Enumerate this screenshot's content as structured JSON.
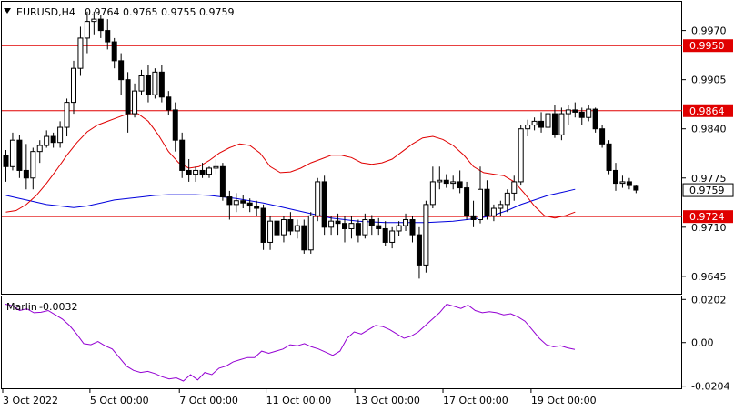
{
  "window": {
    "symbol_timeframe": "EURUSD,H4",
    "ohlc": "0.9764 0.9765 0.9755 0.9759",
    "dropdown_icon": "triangle-down-icon"
  },
  "chart_data": {
    "type": "candlestick",
    "symbol": "EURUSD",
    "timeframe": "H4",
    "ylim": [
      0.9622,
      1.0008
    ],
    "price_ticks": [
      "0.9970",
      "0.9905",
      "0.9840",
      "0.9775",
      "0.9710",
      "0.9645"
    ],
    "date_labels": [
      "3 Oct 2022",
      "5 Oct 00:00",
      "7 Oct 00:00",
      "11 Oct 00:00",
      "13 Oct 00:00",
      "17 Oct 00:00",
      "19 Oct 00:00"
    ],
    "levels": [
      {
        "label": "0.9950",
        "value": 0.995,
        "color": "#e00000"
      },
      {
        "label": "0.9864",
        "value": 0.9864,
        "color": "#e00000"
      },
      {
        "label": "0.9724",
        "value": 0.9724,
        "color": "#e00000"
      }
    ],
    "current_price": {
      "label": "0.9759",
      "value": 0.9759
    },
    "colors": {
      "bull": "#ffffff",
      "bear": "#000000",
      "fast_ma": "#e00000",
      "slow_ma": "#0000dd",
      "level": "#e00000",
      "oscillator": "#9400d3"
    },
    "candles": [
      [
        0.9805,
        0.9812,
        0.977,
        0.979
      ],
      [
        0.979,
        0.9835,
        0.9785,
        0.9825
      ],
      [
        0.9825,
        0.9832,
        0.9775,
        0.9785
      ],
      [
        0.9785,
        0.982,
        0.976,
        0.9775
      ],
      [
        0.9775,
        0.9815,
        0.976,
        0.981
      ],
      [
        0.981,
        0.9825,
        0.9795,
        0.9818
      ],
      [
        0.9818,
        0.9838,
        0.9815,
        0.983
      ],
      [
        0.983,
        0.9835,
        0.9815,
        0.9822
      ],
      [
        0.9822,
        0.985,
        0.9815,
        0.9842
      ],
      [
        0.9842,
        0.988,
        0.983,
        0.9875
      ],
      [
        0.9875,
        0.993,
        0.986,
        0.992
      ],
      [
        0.992,
        0.9975,
        0.991,
        0.996
      ],
      [
        0.996,
        0.9995,
        0.994,
        0.9982
      ],
      [
        0.9982,
        0.9995,
        0.9965,
        0.9985
      ],
      [
        0.9985,
        0.999,
        0.996,
        0.997
      ],
      [
        0.997,
        0.9985,
        0.9945,
        0.9955
      ],
      [
        0.9955,
        0.996,
        0.992,
        0.993
      ],
      [
        0.993,
        0.994,
        0.9885,
        0.9905
      ],
      [
        0.9905,
        0.9915,
        0.9835,
        0.986
      ],
      [
        0.986,
        0.99,
        0.9855,
        0.989
      ],
      [
        0.989,
        0.9918,
        0.9885,
        0.991
      ],
      [
        0.991,
        0.9925,
        0.9875,
        0.9885
      ],
      [
        0.9885,
        0.992,
        0.988,
        0.9915
      ],
      [
        0.9915,
        0.9925,
        0.9875,
        0.9882
      ],
      [
        0.9882,
        0.989,
        0.9858,
        0.9865
      ],
      [
        0.9865,
        0.9875,
        0.981,
        0.9825
      ],
      [
        0.9825,
        0.9835,
        0.9775,
        0.9785
      ],
      [
        0.9785,
        0.98,
        0.977,
        0.978
      ],
      [
        0.978,
        0.979,
        0.977,
        0.9785
      ],
      [
        0.9785,
        0.9795,
        0.9775,
        0.978
      ],
      [
        0.978,
        0.979,
        0.9775,
        0.9788
      ],
      [
        0.9788,
        0.98,
        0.978,
        0.979
      ],
      [
        0.979,
        0.9795,
        0.9745,
        0.975
      ],
      [
        0.975,
        0.9758,
        0.972,
        0.974
      ],
      [
        0.974,
        0.9755,
        0.973,
        0.9745
      ],
      [
        0.9745,
        0.9752,
        0.9735,
        0.9742
      ],
      [
        0.9742,
        0.9748,
        0.973,
        0.9738
      ],
      [
        0.9738,
        0.9745,
        0.9725,
        0.9735
      ],
      [
        0.9735,
        0.974,
        0.968,
        0.969
      ],
      [
        0.969,
        0.9725,
        0.968,
        0.9718
      ],
      [
        0.9718,
        0.973,
        0.9695,
        0.97
      ],
      [
        0.97,
        0.9725,
        0.969,
        0.972
      ],
      [
        0.972,
        0.973,
        0.97,
        0.9705
      ],
      [
        0.9705,
        0.972,
        0.9695,
        0.9712
      ],
      [
        0.9712,
        0.972,
        0.9675,
        0.968
      ],
      [
        0.968,
        0.973,
        0.9675,
        0.9725
      ],
      [
        0.9725,
        0.9775,
        0.9718,
        0.977
      ],
      [
        0.977,
        0.9778,
        0.97,
        0.971
      ],
      [
        0.971,
        0.9725,
        0.97,
        0.9718
      ],
      [
        0.9718,
        0.9728,
        0.97,
        0.9715
      ],
      [
        0.9715,
        0.9725,
        0.969,
        0.9708
      ],
      [
        0.9708,
        0.9725,
        0.9695,
        0.9715
      ],
      [
        0.9715,
        0.972,
        0.969,
        0.97
      ],
      [
        0.97,
        0.9728,
        0.9695,
        0.972
      ],
      [
        0.972,
        0.9726,
        0.97,
        0.9712
      ],
      [
        0.9712,
        0.9722,
        0.97,
        0.9708
      ],
      [
        0.9708,
        0.9718,
        0.9685,
        0.969
      ],
      [
        0.969,
        0.971,
        0.9682,
        0.9705
      ],
      [
        0.9705,
        0.9718,
        0.9698,
        0.9712
      ],
      [
        0.9712,
        0.9728,
        0.9705,
        0.972
      ],
      [
        0.972,
        0.9725,
        0.969,
        0.97
      ],
      [
        0.97,
        0.971,
        0.9642,
        0.966
      ],
      [
        0.966,
        0.9745,
        0.965,
        0.974
      ],
      [
        0.974,
        0.979,
        0.9735,
        0.977
      ],
      [
        0.977,
        0.979,
        0.976,
        0.9772
      ],
      [
        0.9772,
        0.978,
        0.9762,
        0.9768
      ],
      [
        0.9768,
        0.9778,
        0.976,
        0.977
      ],
      [
        0.977,
        0.9785,
        0.9755,
        0.9762
      ],
      [
        0.9762,
        0.977,
        0.972,
        0.9725
      ],
      [
        0.9725,
        0.9745,
        0.971,
        0.972
      ],
      [
        0.972,
        0.979,
        0.9715,
        0.976
      ],
      [
        0.976,
        0.9772,
        0.972,
        0.9725
      ],
      [
        0.9725,
        0.974,
        0.9718,
        0.9735
      ],
      [
        0.9735,
        0.9745,
        0.9725,
        0.974
      ],
      [
        0.974,
        0.976,
        0.973,
        0.9755
      ],
      [
        0.9755,
        0.9778,
        0.9745,
        0.977
      ],
      [
        0.977,
        0.9845,
        0.9765,
        0.984
      ],
      [
        0.984,
        0.9852,
        0.983,
        0.9845
      ],
      [
        0.9845,
        0.9855,
        0.9838,
        0.985
      ],
      [
        0.985,
        0.9862,
        0.9835,
        0.9842
      ],
      [
        0.9842,
        0.987,
        0.983,
        0.986
      ],
      [
        0.986,
        0.9872,
        0.9828,
        0.9832
      ],
      [
        0.9832,
        0.9868,
        0.9825,
        0.986
      ],
      [
        0.986,
        0.9872,
        0.9845,
        0.9865
      ],
      [
        0.9865,
        0.9875,
        0.9855,
        0.9862
      ],
      [
        0.9862,
        0.9868,
        0.9845,
        0.9855
      ],
      [
        0.9855,
        0.9872,
        0.985,
        0.9866
      ],
      [
        0.9866,
        0.9868,
        0.9835,
        0.984
      ],
      [
        0.984,
        0.9845,
        0.9815,
        0.982
      ],
      [
        0.982,
        0.9825,
        0.978,
        0.9785
      ],
      [
        0.9785,
        0.9795,
        0.9758,
        0.9768
      ],
      [
        0.9768,
        0.9778,
        0.9762,
        0.977
      ],
      [
        0.977,
        0.9775,
        0.976,
        0.9765
      ],
      [
        0.9764,
        0.9765,
        0.9755,
        0.9759
      ]
    ],
    "fast_ma": [
      0.973,
      0.9732,
      0.974,
      0.9752,
      0.9768,
      0.9786,
      0.9805,
      0.9822,
      0.9836,
      0.9845,
      0.985,
      0.9855,
      0.986,
      0.986,
      0.985,
      0.9832,
      0.981,
      0.9795,
      0.9788,
      0.979,
      0.9798,
      0.9808,
      0.9815,
      0.982,
      0.9818,
      0.9808,
      0.979,
      0.9782,
      0.9783,
      0.9788,
      0.9795,
      0.98,
      0.9805,
      0.9805,
      0.9802,
      0.9795,
      0.9793,
      0.9795,
      0.98,
      0.981,
      0.982,
      0.9828,
      0.983,
      0.9826,
      0.9818,
      0.9806,
      0.979,
      0.9782,
      0.978,
      0.9778,
      0.977,
      0.9755,
      0.9738,
      0.9725,
      0.9722,
      0.9725,
      0.973
    ],
    "fast_ma_x": [
      0,
      1.5,
      3,
      4.5,
      6,
      7.5,
      9,
      10.5,
      12,
      13.5,
      15,
      16.5,
      18,
      19.5,
      21,
      22.5,
      24,
      25.5,
      27,
      28.5,
      30,
      31.5,
      33,
      34.5,
      36,
      37.5,
      39,
      40.5,
      42,
      43.5,
      45,
      46.5,
      48,
      49.5,
      51,
      52.5,
      54,
      55.5,
      57,
      58.5,
      60,
      61.5,
      63,
      64.5,
      66,
      67.5,
      69,
      70.5,
      72,
      73.5,
      75,
      76.5,
      78,
      79.5,
      81,
      82.5,
      84
    ],
    "slow_ma": [
      0.9752,
      0.9748,
      0.9744,
      0.974,
      0.9738,
      0.9736,
      0.9738,
      0.9742,
      0.9746,
      0.9748,
      0.975,
      0.9752,
      0.9753,
      0.9753,
      0.9753,
      0.9752,
      0.975,
      0.9748,
      0.9745,
      0.9742,
      0.9738,
      0.9734,
      0.973,
      0.9726,
      0.9722,
      0.972,
      0.9718,
      0.9717,
      0.9716,
      0.9716,
      0.9716,
      0.9716,
      0.9717,
      0.9718,
      0.972,
      0.9722,
      0.9726,
      0.9732,
      0.974,
      0.9746,
      0.9752,
      0.9756,
      0.976
    ],
    "slow_ma_x": [
      0,
      2,
      4,
      6,
      8,
      10,
      12,
      14,
      16,
      18,
      20,
      22,
      24,
      26,
      28,
      30,
      32,
      34,
      36,
      38,
      40,
      42,
      44,
      46,
      48,
      50,
      52,
      54,
      56,
      58,
      60,
      62,
      64,
      66,
      68,
      70,
      72,
      74,
      76,
      78,
      80,
      82,
      84
    ],
    "oscillator": {
      "name": "Marlin",
      "value_label": "-0.0032",
      "ylim": [
        -0.0214,
        0.0216
      ],
      "ticks": [
        "0.0202",
        "0.00",
        "-0.0204"
      ],
      "values": [
        0.018,
        0.0172,
        0.015,
        0.0158,
        0.014,
        0.0142,
        0.015,
        0.013,
        0.011,
        0.008,
        0.004,
        -0.0005,
        -0.001,
        0.0005,
        -0.0015,
        -0.003,
        -0.007,
        -0.011,
        -0.013,
        -0.014,
        -0.0135,
        -0.0145,
        -0.016,
        -0.017,
        -0.0165,
        -0.018,
        -0.015,
        -0.0175,
        -0.014,
        -0.015,
        -0.012,
        -0.011,
        -0.009,
        -0.008,
        -0.007,
        -0.007,
        -0.004,
        -0.005,
        -0.004,
        -0.003,
        -0.001,
        -0.0015,
        -0.0005,
        -0.002,
        -0.003,
        -0.0045,
        -0.006,
        -0.004,
        0.002,
        0.005,
        0.004,
        0.006,
        0.008,
        0.0075,
        0.006,
        0.004,
        0.002,
        0.003,
        0.005,
        0.008,
        0.011,
        0.014,
        0.018,
        0.017,
        0.016,
        0.0175,
        0.015,
        0.014,
        0.0145,
        0.014,
        0.013,
        0.0135,
        0.012,
        0.01,
        0.006,
        0.002,
        -0.001,
        -0.002,
        -0.0015,
        -0.0025,
        -0.0032
      ]
    }
  }
}
